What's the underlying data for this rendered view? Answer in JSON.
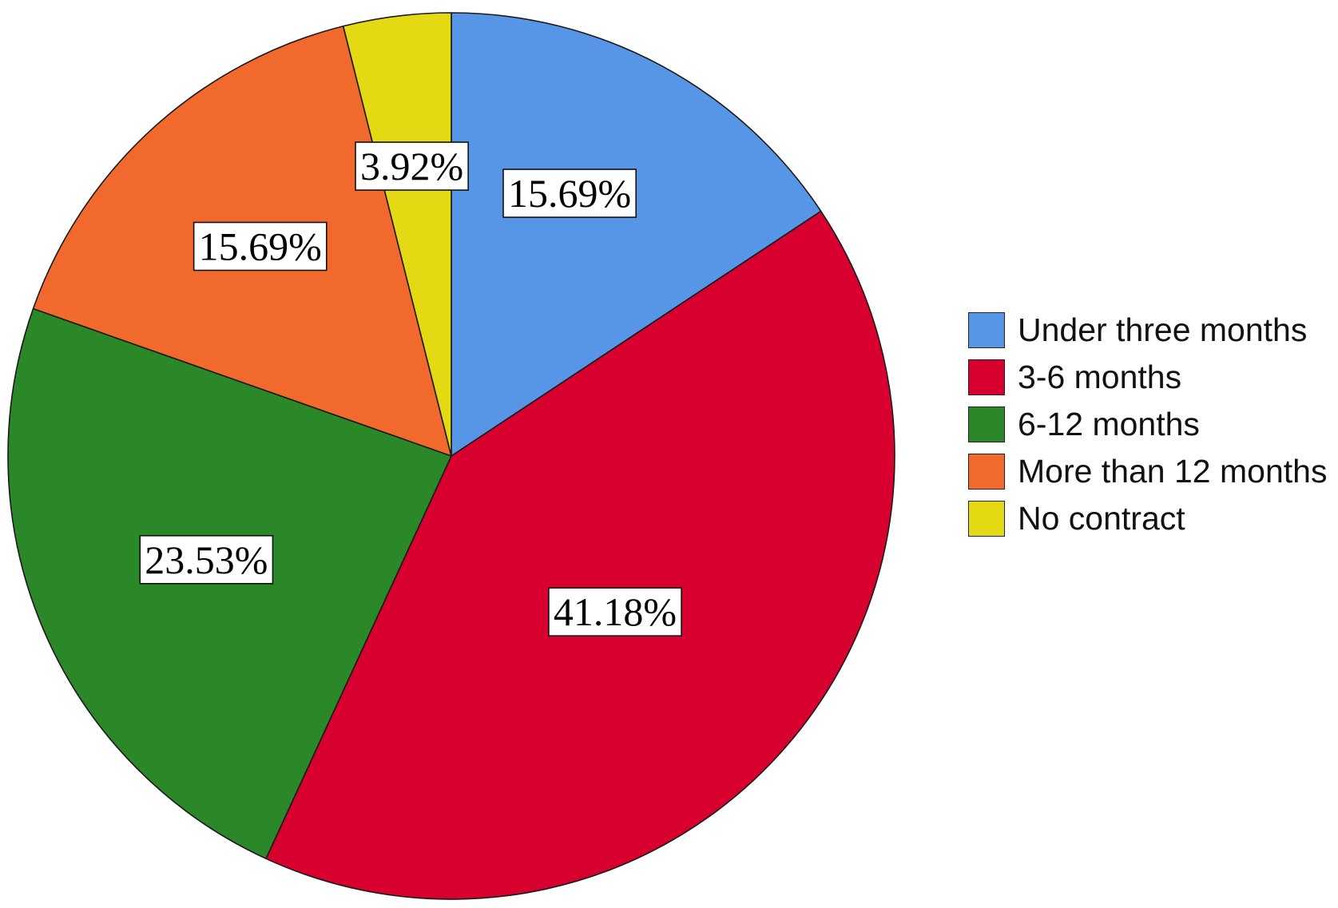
{
  "chart_data": {
    "type": "pie",
    "categories": [
      "Under three months",
      "3-6 months",
      "6-12 months",
      "More than 12 months",
      "No contract"
    ],
    "values": [
      15.69,
      41.18,
      23.53,
      15.69,
      3.92
    ],
    "labels": [
      "15.69%",
      "41.18%",
      "23.53%",
      "15.69%",
      "3.92%"
    ],
    "colors": [
      "#5796e6",
      "#d7002f",
      "#2b8829",
      "#f2692e",
      "#e4d913"
    ],
    "legend_position": "right"
  }
}
